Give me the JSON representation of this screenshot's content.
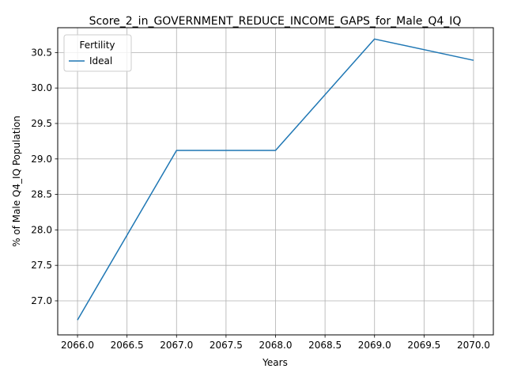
{
  "chart_data": {
    "type": "line",
    "title": "Score_2_in_GOVERNMENT_REDUCE_INCOME_GAPS_for_Male_Q4_IQ",
    "xlabel": "Years",
    "ylabel": "% of Male Q4_IQ Population",
    "x": [
      2066,
      2067,
      2068,
      2069,
      2070
    ],
    "series": [
      {
        "name": "Ideal",
        "color": "#1f77b4",
        "values": [
          26.73,
          29.12,
          29.12,
          30.69,
          30.39
        ]
      }
    ],
    "xlim": [
      2065.8,
      2070.2
    ],
    "ylim": [
      26.52,
      30.85
    ],
    "x_ticks": [
      "2066.0",
      "2066.5",
      "2067.0",
      "2067.5",
      "2068.0",
      "2068.5",
      "2069.0",
      "2069.5",
      "2070.0"
    ],
    "y_ticks": [
      "27.0",
      "27.5",
      "28.0",
      "28.5",
      "29.0",
      "29.5",
      "30.0",
      "30.5"
    ],
    "grid": true,
    "legend": {
      "title": "Fertility",
      "placement": "top-left"
    }
  }
}
